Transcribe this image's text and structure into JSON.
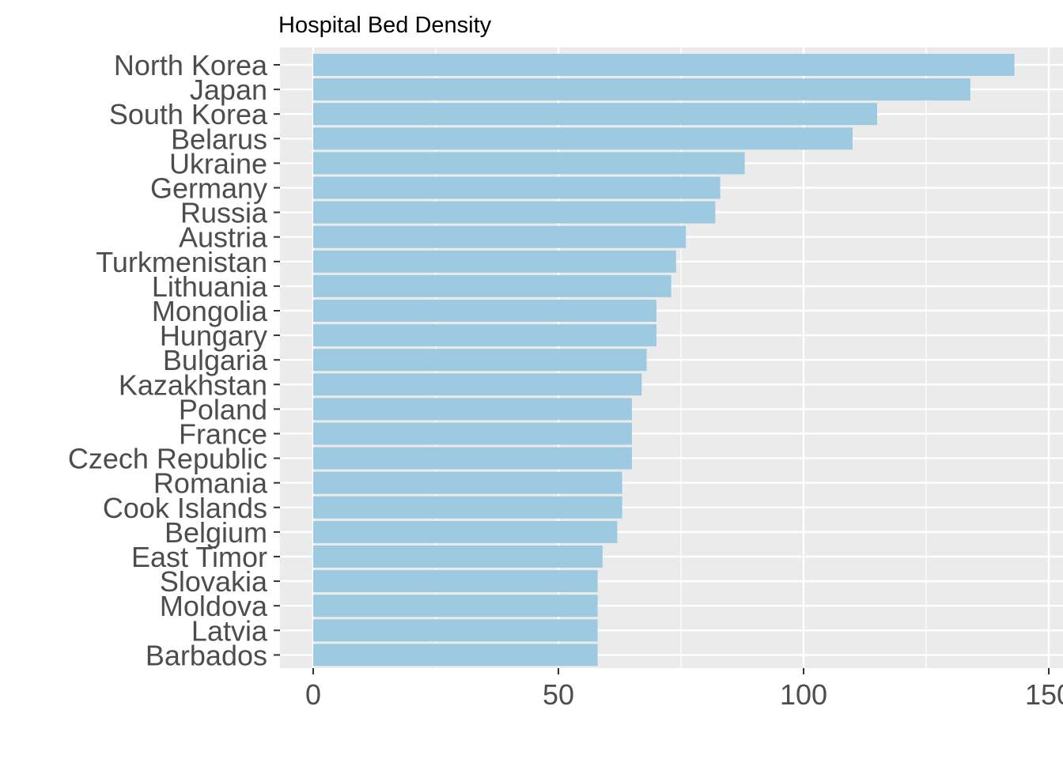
{
  "chart_data": {
    "type": "bar",
    "orientation": "horizontal",
    "title": "Hospital Bed Density",
    "xlabel": "",
    "ylabel": "",
    "xlim": [
      0,
      150
    ],
    "x_ticks": [
      "0",
      "50",
      "100",
      "150"
    ],
    "categories": [
      "North Korea",
      "Japan",
      "South Korea",
      "Belarus",
      "Ukraine",
      "Germany",
      "Russia",
      "Austria",
      "Turkmenistan",
      "Lithuania",
      "Mongolia",
      "Hungary",
      "Bulgaria",
      "Kazakhstan",
      "Poland",
      "France",
      "Czech Republic",
      "Romania",
      "Cook Islands",
      "Belgium",
      "East Timor",
      "Slovakia",
      "Moldova",
      "Latvia",
      "Barbados"
    ],
    "values": [
      143,
      134,
      115,
      110,
      88,
      83,
      82,
      76,
      74,
      73,
      70,
      70,
      68,
      67,
      65,
      65,
      65,
      63,
      63,
      62,
      59,
      58,
      58,
      58,
      58
    ],
    "bar_color": "#9ecae1",
    "panel_background": "#ebebeb",
    "grid": true,
    "legend": "none"
  }
}
